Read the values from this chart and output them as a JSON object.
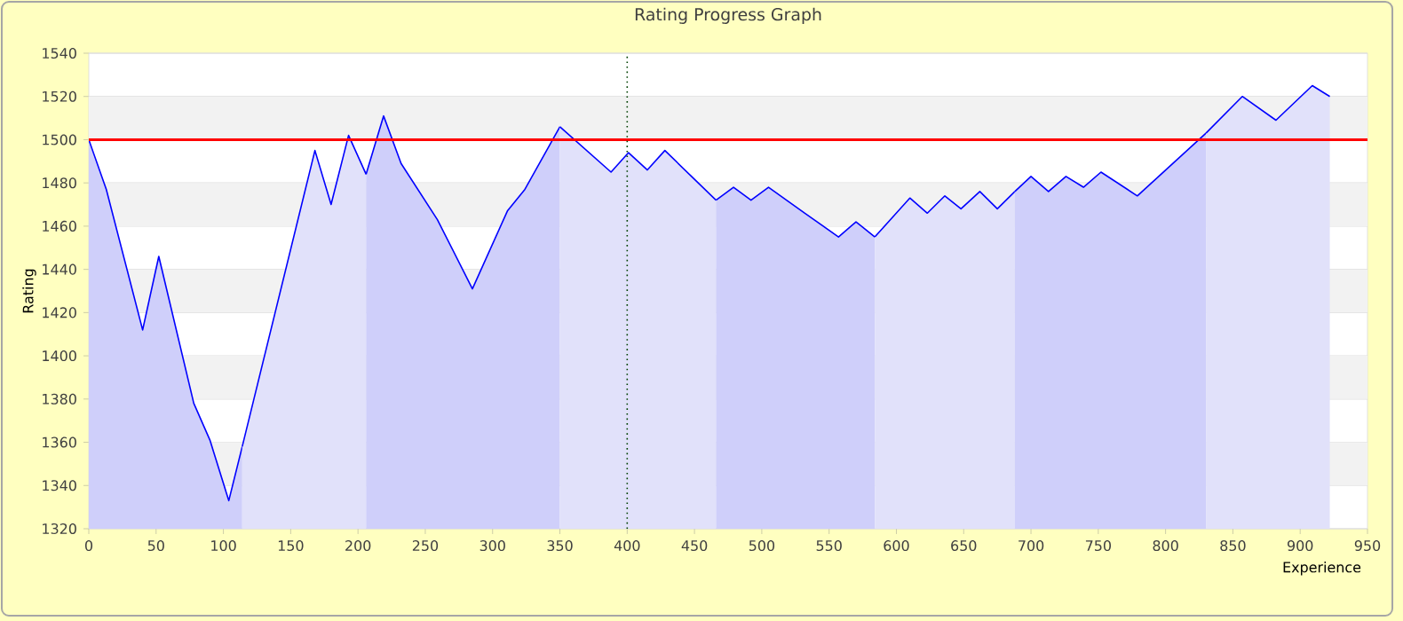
{
  "chart_data": {
    "type": "area",
    "title": "Rating Progress Graph",
    "xlabel": "Experience",
    "ylabel": "Rating",
    "xlim": [
      0,
      950
    ],
    "ylim": [
      1320,
      1540
    ],
    "xticks": [
      0,
      50,
      100,
      150,
      200,
      250,
      300,
      350,
      400,
      450,
      500,
      550,
      600,
      650,
      700,
      750,
      800,
      850,
      900,
      950
    ],
    "yticks": [
      1320,
      1340,
      1360,
      1380,
      1400,
      1420,
      1440,
      1460,
      1480,
      1500,
      1520,
      1540
    ],
    "grid": "y",
    "marker": "none",
    "line_style": "solid",
    "series": [
      {
        "color": "#cfcffa",
        "x": [
          0,
          13,
          40,
          52,
          78,
          90,
          104,
          114
        ],
        "values": [
          1500,
          1477,
          1412,
          1446,
          1378,
          1361,
          1333,
          1358
        ]
      },
      {
        "color": "#e1e1fa",
        "x": [
          114,
          168,
          180,
          193,
          206
        ],
        "values": [
          1358,
          1495,
          1470,
          1502,
          1484
        ]
      },
      {
        "color": "#cfcffa",
        "x": [
          206,
          219,
          232,
          259,
          285,
          311,
          324,
          350
        ],
        "values": [
          1484,
          1511,
          1489,
          1463,
          1431,
          1467,
          1477,
          1506
        ]
      },
      {
        "color": "#e1e1fa",
        "x": [
          350,
          388,
          401,
          415,
          428,
          466
        ],
        "values": [
          1506,
          1485,
          1494,
          1486,
          1495,
          1472
        ]
      },
      {
        "color": "#cfcffa",
        "x": [
          466,
          479,
          492,
          505,
          532,
          557,
          570,
          584
        ],
        "values": [
          1472,
          1478,
          1472,
          1478,
          1466,
          1455,
          1462,
          1455
        ]
      },
      {
        "color": "#e1e1fa",
        "x": [
          584,
          610,
          623,
          636,
          648,
          662,
          675,
          688
        ],
        "values": [
          1455,
          1473,
          1466,
          1474,
          1468,
          1476,
          1468,
          1476
        ]
      },
      {
        "color": "#cfcffa",
        "x": [
          688,
          700,
          713,
          726,
          739,
          752,
          779,
          830
        ],
        "values": [
          1476,
          1483,
          1476,
          1483,
          1478,
          1485,
          1474,
          1503
        ]
      },
      {
        "color": "#e1e1fa",
        "x": [
          830,
          857,
          882,
          909,
          922
        ],
        "values": [
          1503,
          1520,
          1509,
          1525,
          1520
        ]
      }
    ],
    "ref_lines": [
      {
        "axis": "y",
        "value": 1500,
        "color": "#ff0000",
        "line_style": "solid"
      },
      {
        "axis": "x",
        "value": 400,
        "color": "#004000",
        "line_style": "dotted"
      }
    ]
  }
}
